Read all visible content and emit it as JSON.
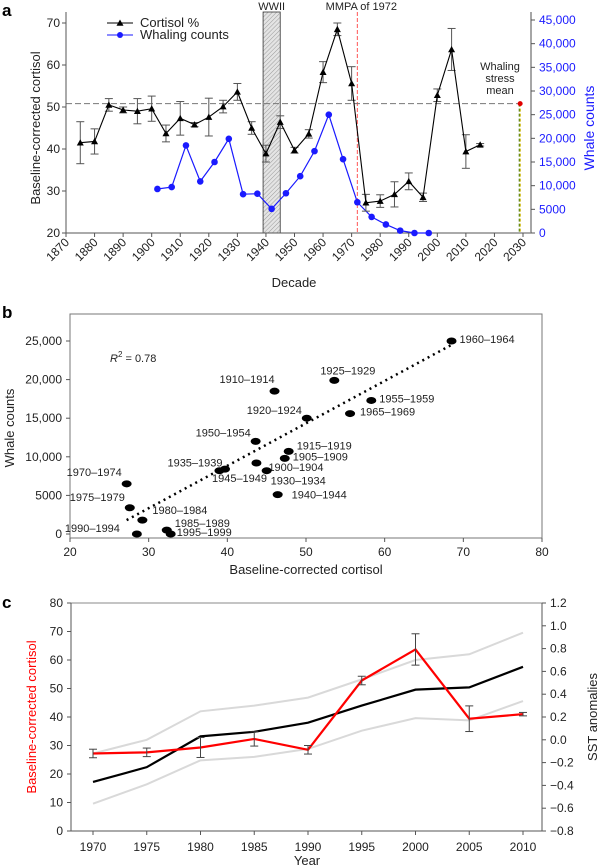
{
  "chart_data": [
    {
      "panel": "a",
      "type": "line",
      "xlabel": "Decade",
      "ylabel": "Baseline-corrected cortisol",
      "y2label": "Whale counts",
      "xlim": [
        1870,
        2030
      ],
      "ylim": [
        20,
        70
      ],
      "y2lim": [
        0,
        45000
      ],
      "xticks": [
        "1870",
        "1880",
        "1890",
        "1900",
        "1910",
        "1920",
        "1930",
        "1940",
        "1950",
        "1960",
        "1970",
        "1980",
        "1990",
        "2000",
        "2010",
        "2020",
        "2030"
      ],
      "yticks": [
        "20",
        "30",
        "40",
        "50",
        "60",
        "70"
      ],
      "y2ticks": [
        "0",
        "5000",
        "10,000",
        "15,000",
        "20,000",
        "25,000",
        "30,000",
        "35,000",
        "40,000",
        "45,000"
      ],
      "legend": [
        {
          "name": "Cortisol %",
          "color": "#000000",
          "marker": "triangle"
        },
        {
          "name": "Whaling counts",
          "color": "#0000ff",
          "marker": "circle"
        }
      ],
      "legend_position": "top-left",
      "series": [
        {
          "name": "Cortisol %",
          "x": [
            1875,
            1880,
            1885,
            1890,
            1895,
            1900,
            1905,
            1910,
            1915,
            1920,
            1925,
            1930,
            1935,
            1940,
            1945,
            1950,
            1955,
            1960,
            1965,
            1970,
            1975,
            1980,
            1985,
            1990,
            1995,
            2000,
            2005,
            2010,
            2015
          ],
          "values": [
            41.5,
            41.8,
            50.5,
            49.3,
            49.0,
            49.6,
            43.7,
            47.3,
            45.8,
            47.6,
            50.1,
            53.6,
            45.0,
            38.9,
            46.4,
            39.7,
            43.6,
            58.3,
            68.5,
            55.6,
            27.2,
            27.6,
            29.2,
            32.3,
            28.5,
            52.8,
            63.7,
            39.4,
            41.0
          ],
          "err": [
            5.0,
            3.0,
            1.5,
            0.7,
            3.0,
            3.0,
            2.0,
            4.0,
            0.5,
            4.5,
            1.5,
            2.0,
            1.5,
            2.0,
            1.5,
            0.7,
            1.0,
            2.5,
            1.5,
            4.0,
            2.0,
            1.5,
            3.0,
            2.0,
            1.0,
            1.5,
            5.0,
            4.0,
            0.3
          ]
        },
        {
          "name": "Whaling counts",
          "x": [
            1902,
            1907,
            1912,
            1917,
            1922,
            1927,
            1932,
            1937,
            1942,
            1947,
            1952,
            1957,
            1962,
            1967,
            1972,
            1977,
            1982,
            1987,
            1992,
            1997
          ],
          "values": [
            9300,
            9700,
            18500,
            10900,
            15000,
            19900,
            8200,
            8300,
            5100,
            8400,
            12000,
            17300,
            25000,
            15600,
            6500,
            3400,
            1800,
            500,
            0,
            0
          ]
        }
      ],
      "annotations": [
        {
          "text": "WWII",
          "x_range": [
            1939,
            1945
          ],
          "style": "hatched band"
        },
        {
          "text": "MMPA of 1972",
          "x": 1972,
          "style": "red dashed vertical line"
        },
        {
          "text": "Whaling stress mean",
          "x": 2029,
          "y": 50.8,
          "style": "red marker with dashed lines"
        }
      ],
      "hline": 50.8
    },
    {
      "panel": "b",
      "type": "scatter",
      "xlabel": "Baseline-corrected cortisol",
      "ylabel": "Whale counts",
      "xlim": [
        20,
        80
      ],
      "ylim": [
        0,
        27000
      ],
      "xticks": [
        "20",
        "30",
        "40",
        "50",
        "60",
        "70",
        "80"
      ],
      "yticks": [
        "0",
        "5000",
        "10,000",
        "15,000",
        "20,000",
        "25,000"
      ],
      "annotation": "R² = 0.78",
      "r2_label": "R",
      "r2_sup": "2",
      "r2_value": " = 0.78",
      "trendline": {
        "x": [
          27.2,
          68.5
        ],
        "y": [
          1800,
          24500
        ],
        "style": "dotted"
      },
      "points": [
        {
          "label": "1960–1964",
          "x": 68.5,
          "y": 25000
        },
        {
          "label": "1925–1929",
          "x": 53.6,
          "y": 19900
        },
        {
          "label": "1910–1914",
          "x": 46.0,
          "y": 18500
        },
        {
          "label": "1955–1959",
          "x": 58.3,
          "y": 17300
        },
        {
          "label": "1965–1969",
          "x": 55.6,
          "y": 15600
        },
        {
          "label": "1920–1924",
          "x": 50.1,
          "y": 15000
        },
        {
          "label": "1950–1954",
          "x": 43.6,
          "y": 12000
        },
        {
          "label": "1915–1919",
          "x": 47.8,
          "y": 10700
        },
        {
          "label": "1905–1909",
          "x": 47.3,
          "y": 9800
        },
        {
          "label": "1900–1904",
          "x": 43.7,
          "y": 9200
        },
        {
          "label": "1930–1934",
          "x": 45.0,
          "y": 8200
        },
        {
          "label": "1935–1939",
          "x": 39.0,
          "y": 8200
        },
        {
          "label": "1945–1949",
          "x": 39.7,
          "y": 8400
        },
        {
          "label": "1940–1944",
          "x": 46.4,
          "y": 5100
        },
        {
          "label": "1970–1974",
          "x": 27.2,
          "y": 6500
        },
        {
          "label": "1975–1979",
          "x": 27.6,
          "y": 3400
        },
        {
          "label": "1980–1984",
          "x": 29.2,
          "y": 1800
        },
        {
          "label": "1985–1989",
          "x": 32.3,
          "y": 500
        },
        {
          "label": "1990–1994",
          "x": 28.5,
          "y": 0
        },
        {
          "label": "1995–1999",
          "x": 32.8,
          "y": 0
        }
      ]
    },
    {
      "panel": "c",
      "type": "line",
      "xlabel": "Year",
      "ylabel": "Baseline-corrected cortisol",
      "y2label": "SST anomalies",
      "xlim": [
        1968,
        2012
      ],
      "ylim": [
        0,
        80
      ],
      "y2lim": [
        -0.8,
        1.2
      ],
      "xticks": [
        "1970",
        "1975",
        "1980",
        "1985",
        "1990",
        "1995",
        "2000",
        "2005",
        "2010"
      ],
      "yticks": [
        "0",
        "10",
        "20",
        "30",
        "40",
        "50",
        "60",
        "70",
        "80"
      ],
      "y2ticks": [
        "−0.8",
        "−0.6",
        "−0.4",
        "−0.2",
        "0.0",
        "0.2",
        "0.4",
        "0.6",
        "0.8",
        "1.0",
        "1.2"
      ],
      "series": [
        {
          "name": "Cortisol",
          "color": "#ff0000",
          "axis": "left",
          "x": [
            1970,
            1975,
            1980,
            1985,
            1990,
            1995,
            2000,
            2005,
            2010
          ],
          "values": [
            27.2,
            27.6,
            29.3,
            32.3,
            28.5,
            52.8,
            63.7,
            39.4,
            41.0
          ],
          "err": [
            1.5,
            1.5,
            3.5,
            2.5,
            1.5,
            1.5,
            5.5,
            4.5,
            0.6
          ]
        },
        {
          "name": "SST anomaly",
          "color": "#000000",
          "axis": "right",
          "x": [
            1970,
            1975,
            1980,
            1985,
            1990,
            1995,
            2000,
            2005,
            2010
          ],
          "values": [
            -0.37,
            -0.24,
            0.03,
            0.07,
            0.15,
            0.3,
            0.44,
            0.46,
            0.64
          ]
        },
        {
          "name": "SST upper bound",
          "color": "#d9d9d9",
          "axis": "right",
          "x": [
            1970,
            1975,
            1980,
            1985,
            1990,
            1995,
            2000,
            2005,
            2010
          ],
          "values": [
            -0.12,
            0.0,
            0.25,
            0.3,
            0.37,
            0.53,
            0.7,
            0.75,
            0.94
          ]
        },
        {
          "name": "SST lower bound",
          "color": "#d9d9d9",
          "axis": "right",
          "x": [
            1970,
            1975,
            1980,
            1985,
            1990,
            1995,
            2000,
            2005,
            2010
          ],
          "values": [
            -0.56,
            -0.39,
            -0.18,
            -0.15,
            -0.08,
            0.08,
            0.19,
            0.17,
            0.34
          ]
        }
      ]
    }
  ],
  "panels": {
    "a": "a",
    "b": "b",
    "c": "c"
  }
}
